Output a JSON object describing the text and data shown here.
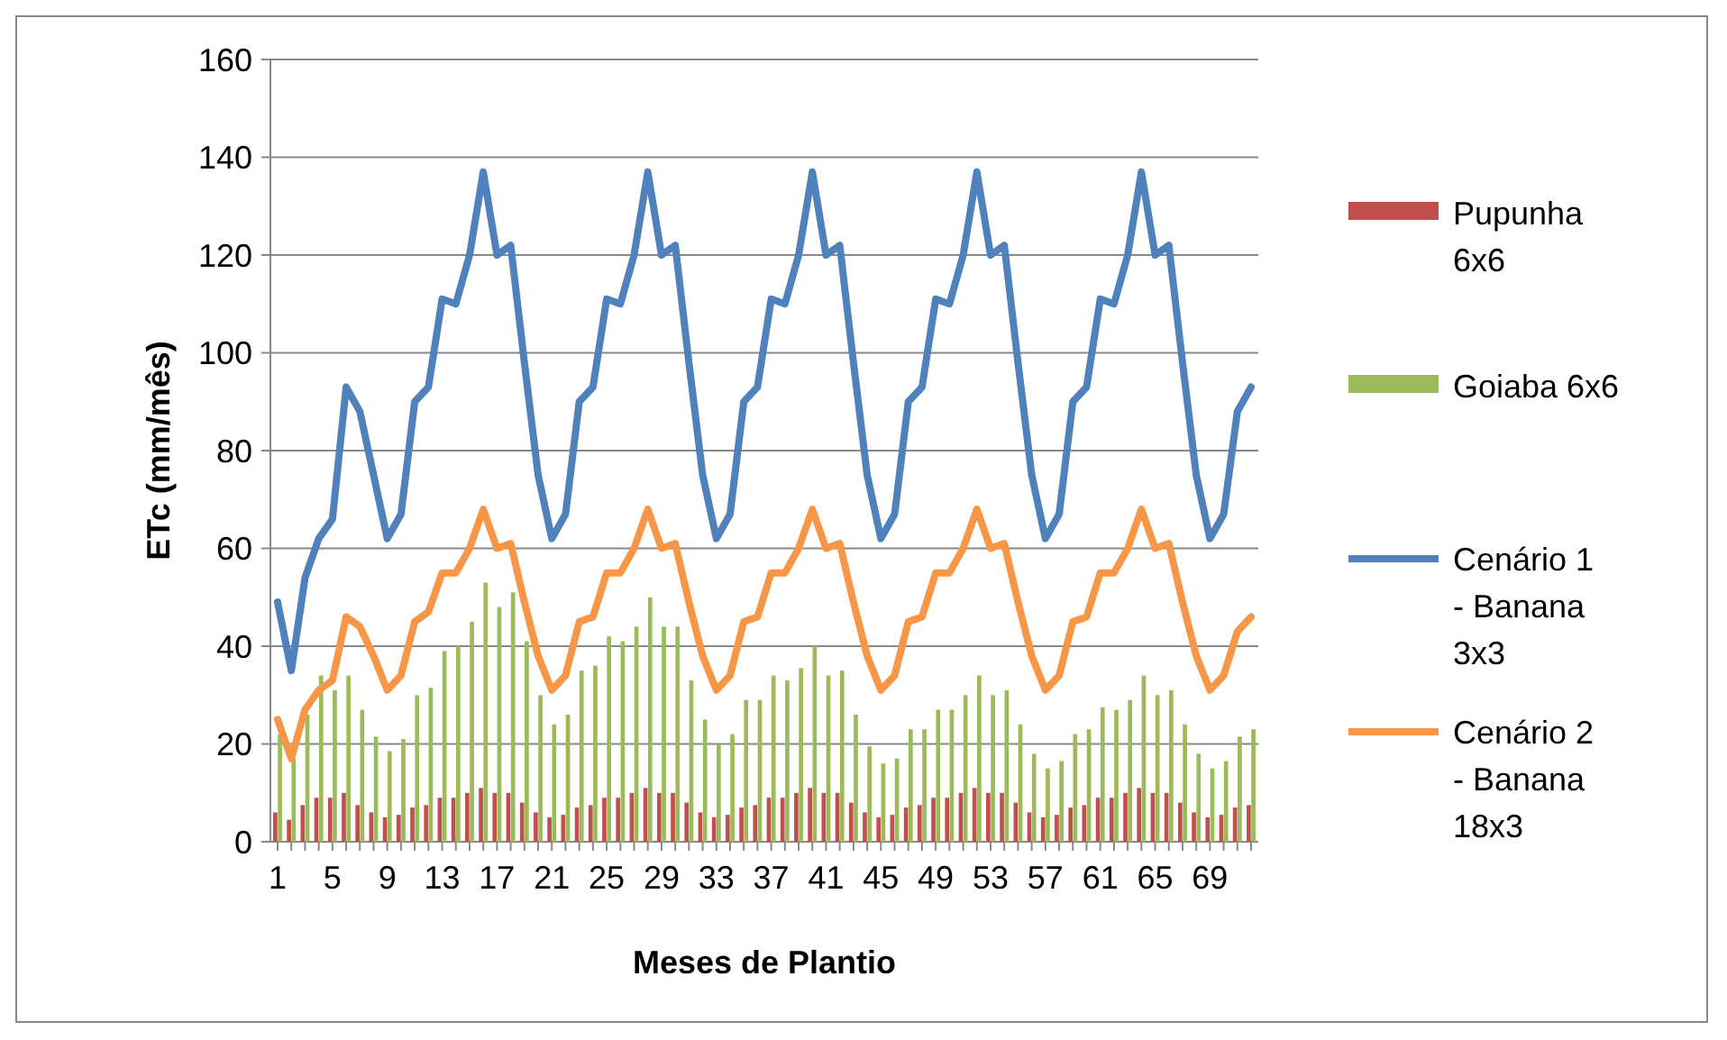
{
  "chart_data": {
    "type": "bar",
    "xlabel": "Meses de Plantio",
    "ylabel": "ETc (mm/mês)",
    "categories": [
      "1",
      null,
      null,
      null,
      "5",
      null,
      null,
      null,
      "9",
      null,
      null,
      null,
      "13",
      null,
      null,
      null,
      "17",
      null,
      null,
      null,
      "21",
      null,
      null,
      null,
      "25",
      null,
      null,
      null,
      "29",
      null,
      null,
      null,
      "33",
      null,
      null,
      null,
      "37",
      null,
      null,
      null,
      "41",
      null,
      null,
      null,
      "45",
      null,
      null,
      null,
      "49",
      null,
      null,
      null,
      "53",
      null,
      null,
      null,
      "57",
      null,
      null,
      null,
      "61",
      null,
      null,
      null,
      "65",
      null,
      null,
      null,
      "69",
      null,
      null,
      null
    ],
    "ylim": [
      0,
      160
    ],
    "yticks": [
      0,
      20,
      40,
      60,
      80,
      100,
      120,
      140,
      160
    ],
    "grid": "y",
    "legend": "right",
    "series": [
      {
        "name": "Pupunha 6x6",
        "color": "#c0504d",
        "values": [
          6,
          4.5,
          7.5,
          9,
          9,
          10,
          7.5,
          6,
          5,
          5.5,
          7,
          7.5,
          9,
          9,
          10,
          11,
          10,
          10,
          8,
          6,
          5,
          5.5,
          7,
          7.5,
          9,
          9,
          10,
          11,
          10,
          10,
          8,
          6,
          5,
          5.5,
          7,
          7.5,
          9,
          9,
          10,
          11,
          10,
          10,
          8,
          6,
          5,
          5.5,
          7,
          7.5,
          9,
          9,
          10,
          11,
          10,
          10,
          8,
          6,
          5,
          5.5,
          7,
          7.5,
          9,
          9,
          10,
          11,
          10,
          10,
          8,
          6,
          5,
          5.5,
          7,
          7.5
        ]
      },
      {
        "name": "Goiaba 6x6",
        "color": "#9bbb59",
        "values": [
          22,
          17,
          26,
          34,
          31,
          34,
          27,
          21.5,
          18.5,
          21,
          30,
          31.5,
          39,
          40,
          45,
          53,
          48,
          51,
          41,
          30,
          24,
          26,
          35,
          36,
          42,
          41,
          44,
          50,
          44,
          44,
          33,
          25,
          20,
          22,
          29,
          29,
          34,
          33,
          35.5,
          40,
          34,
          35,
          26,
          19.5,
          16,
          17,
          23,
          23,
          27,
          27,
          30,
          34,
          30,
          31,
          24,
          18,
          15,
          16.5,
          22,
          23,
          27.5,
          27,
          29,
          34,
          30,
          31,
          24,
          18,
          15,
          16.5,
          21.5,
          23
        ]
      },
      {
        "name": "Cenário 1 - Banana 3x3",
        "color": "#4f81bd",
        "type": "line",
        "values": [
          49,
          35,
          54,
          62,
          66,
          93,
          88,
          75,
          62,
          67,
          90,
          93,
          111,
          110,
          120,
          137,
          120,
          122,
          98,
          75,
          62,
          67,
          90,
          93,
          111,
          110,
          120,
          137,
          120,
          122,
          98,
          75,
          62,
          67,
          90,
          93,
          111,
          110,
          120,
          137,
          120,
          122,
          98,
          75,
          62,
          67,
          90,
          93,
          111,
          110,
          120,
          137,
          120,
          122,
          98,
          75,
          62,
          67,
          90,
          93,
          111,
          110,
          120,
          137,
          120,
          122,
          98,
          75,
          62,
          67,
          88,
          93
        ]
      },
      {
        "name": "Cenário 2 - Banana 18x3",
        "color": "#f79646",
        "type": "line",
        "values": [
          25,
          17,
          27,
          31,
          33,
          46,
          44,
          38,
          31,
          34,
          45,
          47,
          55,
          55,
          60,
          68,
          60,
          61,
          49,
          38,
          31,
          34,
          45,
          46,
          55,
          55,
          60,
          68,
          60,
          61,
          49,
          38,
          31,
          34,
          45,
          46,
          55,
          55,
          60,
          68,
          60,
          61,
          49,
          38,
          31,
          34,
          45,
          46,
          55,
          55,
          60,
          68,
          60,
          61,
          49,
          38,
          31,
          34,
          45,
          46,
          55,
          55,
          60,
          68,
          60,
          61,
          49,
          38,
          31,
          34,
          43,
          46
        ]
      }
    ]
  }
}
